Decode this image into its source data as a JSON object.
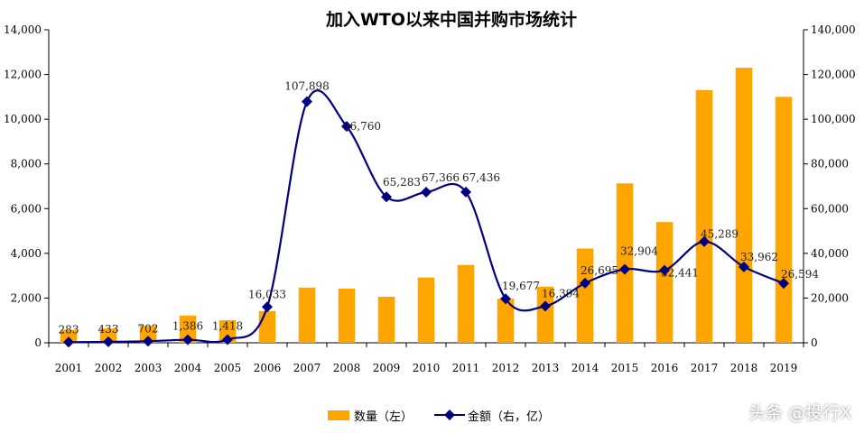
{
  "chart_data": {
    "type": "bar",
    "title": "加入WTO以来中国并购市场统计",
    "categories": [
      "2001",
      "2002",
      "2003",
      "2004",
      "2005",
      "2006",
      "2007",
      "2008",
      "2009",
      "2010",
      "2011",
      "2012",
      "2013",
      "2014",
      "2015",
      "2016",
      "2017",
      "2018",
      "2019"
    ],
    "series": [
      {
        "name": "数量（左）",
        "type": "bar",
        "axis": "left",
        "color": "#FFA500",
        "values": [
          580,
          640,
          760,
          1220,
          1010,
          1420,
          2470,
          2420,
          2060,
          2920,
          3480,
          1970,
          2510,
          4220,
          7130,
          5400,
          11300,
          12300,
          11000
        ]
      },
      {
        "name": "金额（右，亿）",
        "type": "line",
        "axis": "right",
        "color": "#000080",
        "marker": "diamond",
        "values": [
          283,
          433,
          702,
          1386,
          1418,
          16033,
          107898,
          96760,
          65283,
          67366,
          67436,
          19677,
          16394,
          26695,
          32904,
          32441,
          45289,
          33962,
          26594
        ],
        "labels": [
          "283",
          "433",
          "702",
          "1,386",
          "1,418",
          "16,033",
          "107,898",
          "96,760",
          "65,283",
          "67,366",
          "67,436",
          "19,677",
          "16,394",
          "26,695",
          "32,904",
          "32,441",
          "45,289",
          "33,962",
          "26,594"
        ]
      }
    ],
    "y_left": {
      "range": [
        0,
        14000
      ],
      "ticks": [
        0,
        2000,
        4000,
        6000,
        8000,
        10000,
        12000,
        14000
      ],
      "tick_labels": [
        "0",
        "2,000",
        "4,000",
        "6,000",
        "8,000",
        "10,000",
        "12,000",
        "14,000"
      ]
    },
    "y_right": {
      "range": [
        0,
        140000
      ],
      "ticks": [
        0,
        20000,
        40000,
        60000,
        80000,
        100000,
        120000,
        140000
      ],
      "tick_labels": [
        "0",
        "20,000",
        "40,000",
        "60,000",
        "80,000",
        "100,000",
        "120,000",
        "140,000"
      ]
    },
    "grid": false,
    "legend_position": "bottom",
    "label_offsets": [
      [
        0,
        -10
      ],
      [
        0,
        -10
      ],
      [
        0,
        -10
      ],
      [
        0,
        -11
      ],
      [
        0,
        -11
      ],
      [
        0,
        -10
      ],
      [
        0,
        -13
      ],
      [
        17,
        4
      ],
      [
        17,
        -12
      ],
      [
        16,
        -12
      ],
      [
        17,
        -12
      ],
      [
        17,
        -10
      ],
      [
        17,
        -10
      ],
      [
        16,
        -10
      ],
      [
        16,
        -16
      ],
      [
        17,
        7
      ],
      [
        17,
        -4
      ],
      [
        17,
        -7
      ],
      [
        18,
        -6
      ]
    ]
  },
  "watermark": "头条 @投行X"
}
